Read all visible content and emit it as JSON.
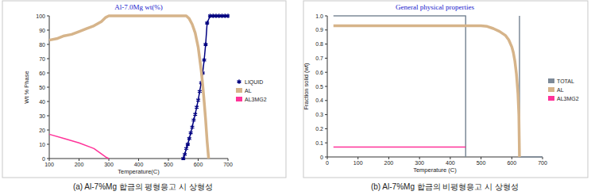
{
  "chart_data": [
    {
      "type": "line",
      "title": "Al-7.0Mg wt(%)",
      "x_label": "Temperature(C)",
      "y_label": "Wt % Phase",
      "caption": "(a) Al-7%Mg 합금의 평형응고 시 상형성",
      "xlim": [
        100,
        700
      ],
      "xticks": [
        100,
        200,
        300,
        400,
        500,
        600,
        700
      ],
      "ylim": [
        0,
        100
      ],
      "yticks": [
        0,
        10,
        20,
        30,
        40,
        50,
        60,
        70,
        80,
        90,
        100
      ],
      "grid": false,
      "legend": "right",
      "series": [
        {
          "name": "LIQUID",
          "color": "#000080",
          "marker": "star",
          "line_style": "solid",
          "x": [
            550,
            555,
            560,
            565,
            570,
            575,
            580,
            585,
            590,
            595,
            600,
            605,
            610,
            615,
            620,
            625,
            630,
            640,
            650,
            660,
            670,
            680,
            690,
            700
          ],
          "values": [
            0,
            3,
            7,
            10,
            14,
            18,
            22,
            27,
            31,
            36,
            41,
            47,
            53,
            60,
            69,
            80,
            95,
            100,
            100,
            100,
            100,
            100,
            100,
            100
          ]
        },
        {
          "name": "AL",
          "color": "#d6b48a",
          "marker": "none",
          "line_style": "thick",
          "x": [
            100,
            125,
            150,
            175,
            200,
            225,
            250,
            275,
            290,
            300,
            400,
            500,
            560,
            570,
            580,
            590,
            600,
            605,
            610,
            615,
            620,
            625,
            630,
            635
          ],
          "values": [
            83,
            84,
            86,
            87,
            89,
            91,
            93,
            96,
            99,
            100,
            100,
            100,
            100,
            98,
            94,
            88,
            78,
            70,
            62,
            52,
            40,
            27,
            12,
            0
          ]
        },
        {
          "name": "AL3MG2",
          "color": "#ff3399",
          "marker": "none",
          "line_style": "solid",
          "x": [
            100,
            150,
            200,
            250,
            290,
            300
          ],
          "values": [
            17,
            14,
            11,
            7,
            1,
            0
          ]
        }
      ]
    },
    {
      "type": "line",
      "title": "General physical properties",
      "x_label": "Temperature (C)",
      "y_label": "Fraction solid (wt)",
      "caption": "(b) Al-7%Mg 합금의 비평형응고 시 상형성",
      "xlim": [
        0,
        700
      ],
      "xticks": [
        0,
        100,
        200,
        300,
        400,
        500,
        600,
        700
      ],
      "ylim": [
        0,
        1
      ],
      "yticks": [
        0,
        0.1,
        0.2,
        0.3,
        0.4,
        0.5,
        0.6,
        0.7,
        0.8,
        0.9,
        {
          "value": 1,
          "label": "1.0"
        }
      ],
      "grid": false,
      "legend": "right",
      "series": [
        {
          "name": "TOTAL",
          "color": "#7d8a98",
          "marker": "none",
          "line_style": "solid",
          "x": [
            20,
            450,
            450,
            450,
            625,
            625,
            625,
            625,
            700
          ],
          "values": [
            1,
            1,
            0,
            null,
            0,
            1,
            null,
            0,
            0
          ]
        },
        {
          "name": "AL",
          "color": "#d6b48a",
          "marker": "none",
          "line_style": "thick",
          "x": [
            20,
            450,
            500,
            520,
            540,
            560,
            580,
            590,
            600,
            605,
            610,
            615,
            620,
            623,
            625
          ],
          "values": [
            0.93,
            0.93,
            0.93,
            0.925,
            0.91,
            0.89,
            0.86,
            0.83,
            0.78,
            0.74,
            0.68,
            0.59,
            0.45,
            0.3,
            0
          ]
        },
        {
          "name": "AL3MG2",
          "color": "#ff3399",
          "marker": "none",
          "line_style": "solid",
          "x": [
            20,
            450
          ],
          "values": [
            0.07,
            0.07
          ]
        }
      ]
    }
  ]
}
